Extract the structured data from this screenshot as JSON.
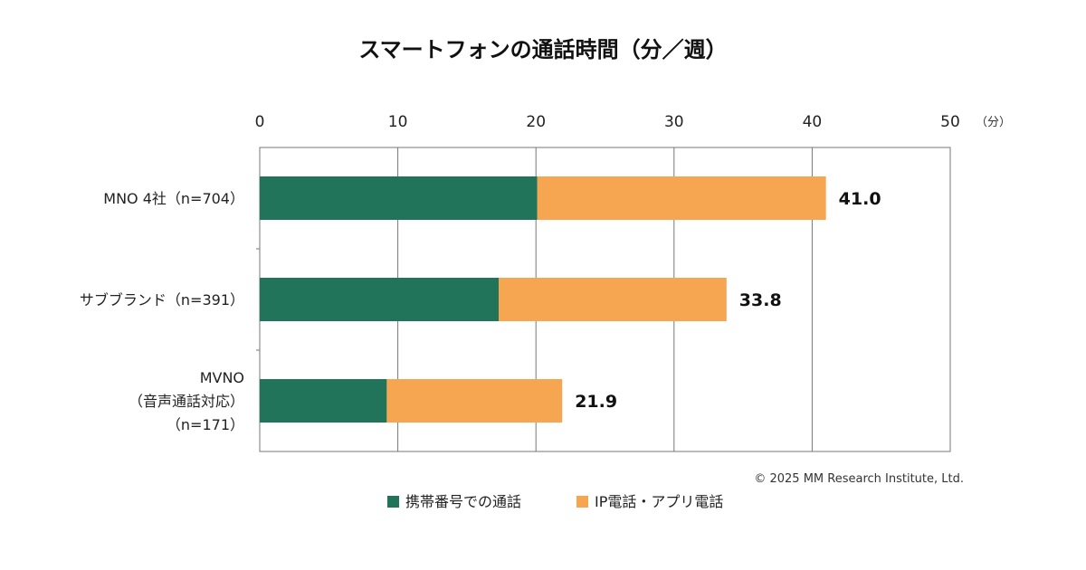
{
  "chart_data": {
    "type": "bar",
    "orientation": "horizontal",
    "stacked": true,
    "title": "スマートフォンの通話時間（分／週）",
    "axis_unit": "（分）",
    "xlim": [
      0,
      50
    ],
    "ticks": [
      0,
      10,
      20,
      30,
      40,
      50
    ],
    "grid": true,
    "categories": [
      [
        "MNO 4社（n=704）"
      ],
      [
        "サブブランド（n=391）"
      ],
      [
        "MVNO",
        "（音声通話対応）",
        "（n=171）"
      ]
    ],
    "series": [
      {
        "name": "携帯番号での通話",
        "color": "#217359",
        "values": [
          20.1,
          17.3,
          9.2
        ]
      },
      {
        "name": "IP電話・アプリ電話",
        "color": "#f6a550",
        "values": [
          20.9,
          16.5,
          12.7
        ]
      }
    ],
    "totals": [
      "41.0",
      "33.8",
      "21.9"
    ],
    "legend_position": "bottom",
    "copyright": "© 2025 MM Research Institute, Ltd."
  }
}
